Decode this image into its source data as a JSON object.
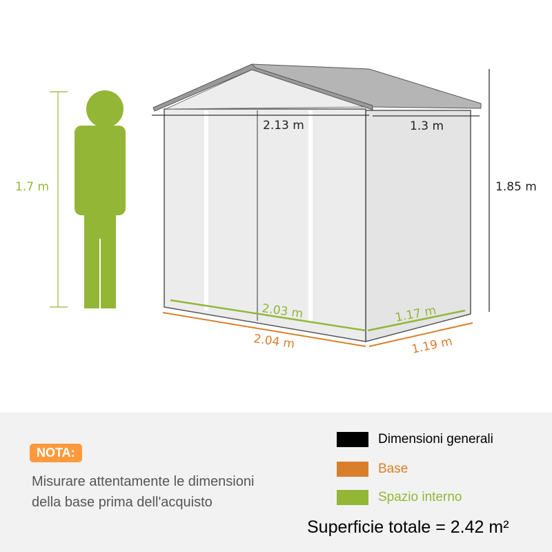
{
  "colors": {
    "general": "#000000",
    "base": "#d97f2b",
    "interior": "#93b637",
    "nota": "#ff9a3c"
  },
  "person": {
    "height_label": "1.7 m"
  },
  "shed": {
    "front_width_top": "2.13 m",
    "side_depth_top": "1.3 m",
    "height": "1.85 m",
    "interior_width": "2.03 m",
    "interior_depth": "1.17 m",
    "base_width": "2.04 m",
    "base_depth": "1.19 m"
  },
  "note": {
    "badge": "NOTA:",
    "text": "Misurare attentamente le dimensioni della base prima dell'acquisto"
  },
  "legend": [
    {
      "label": "Dimensioni generali",
      "color": "#000000"
    },
    {
      "label": "Base",
      "color": "#d97f2b"
    },
    {
      "label": "Spazio interno",
      "color": "#93b637"
    }
  ],
  "total_area": "Superficie totale = 2.42 m²"
}
